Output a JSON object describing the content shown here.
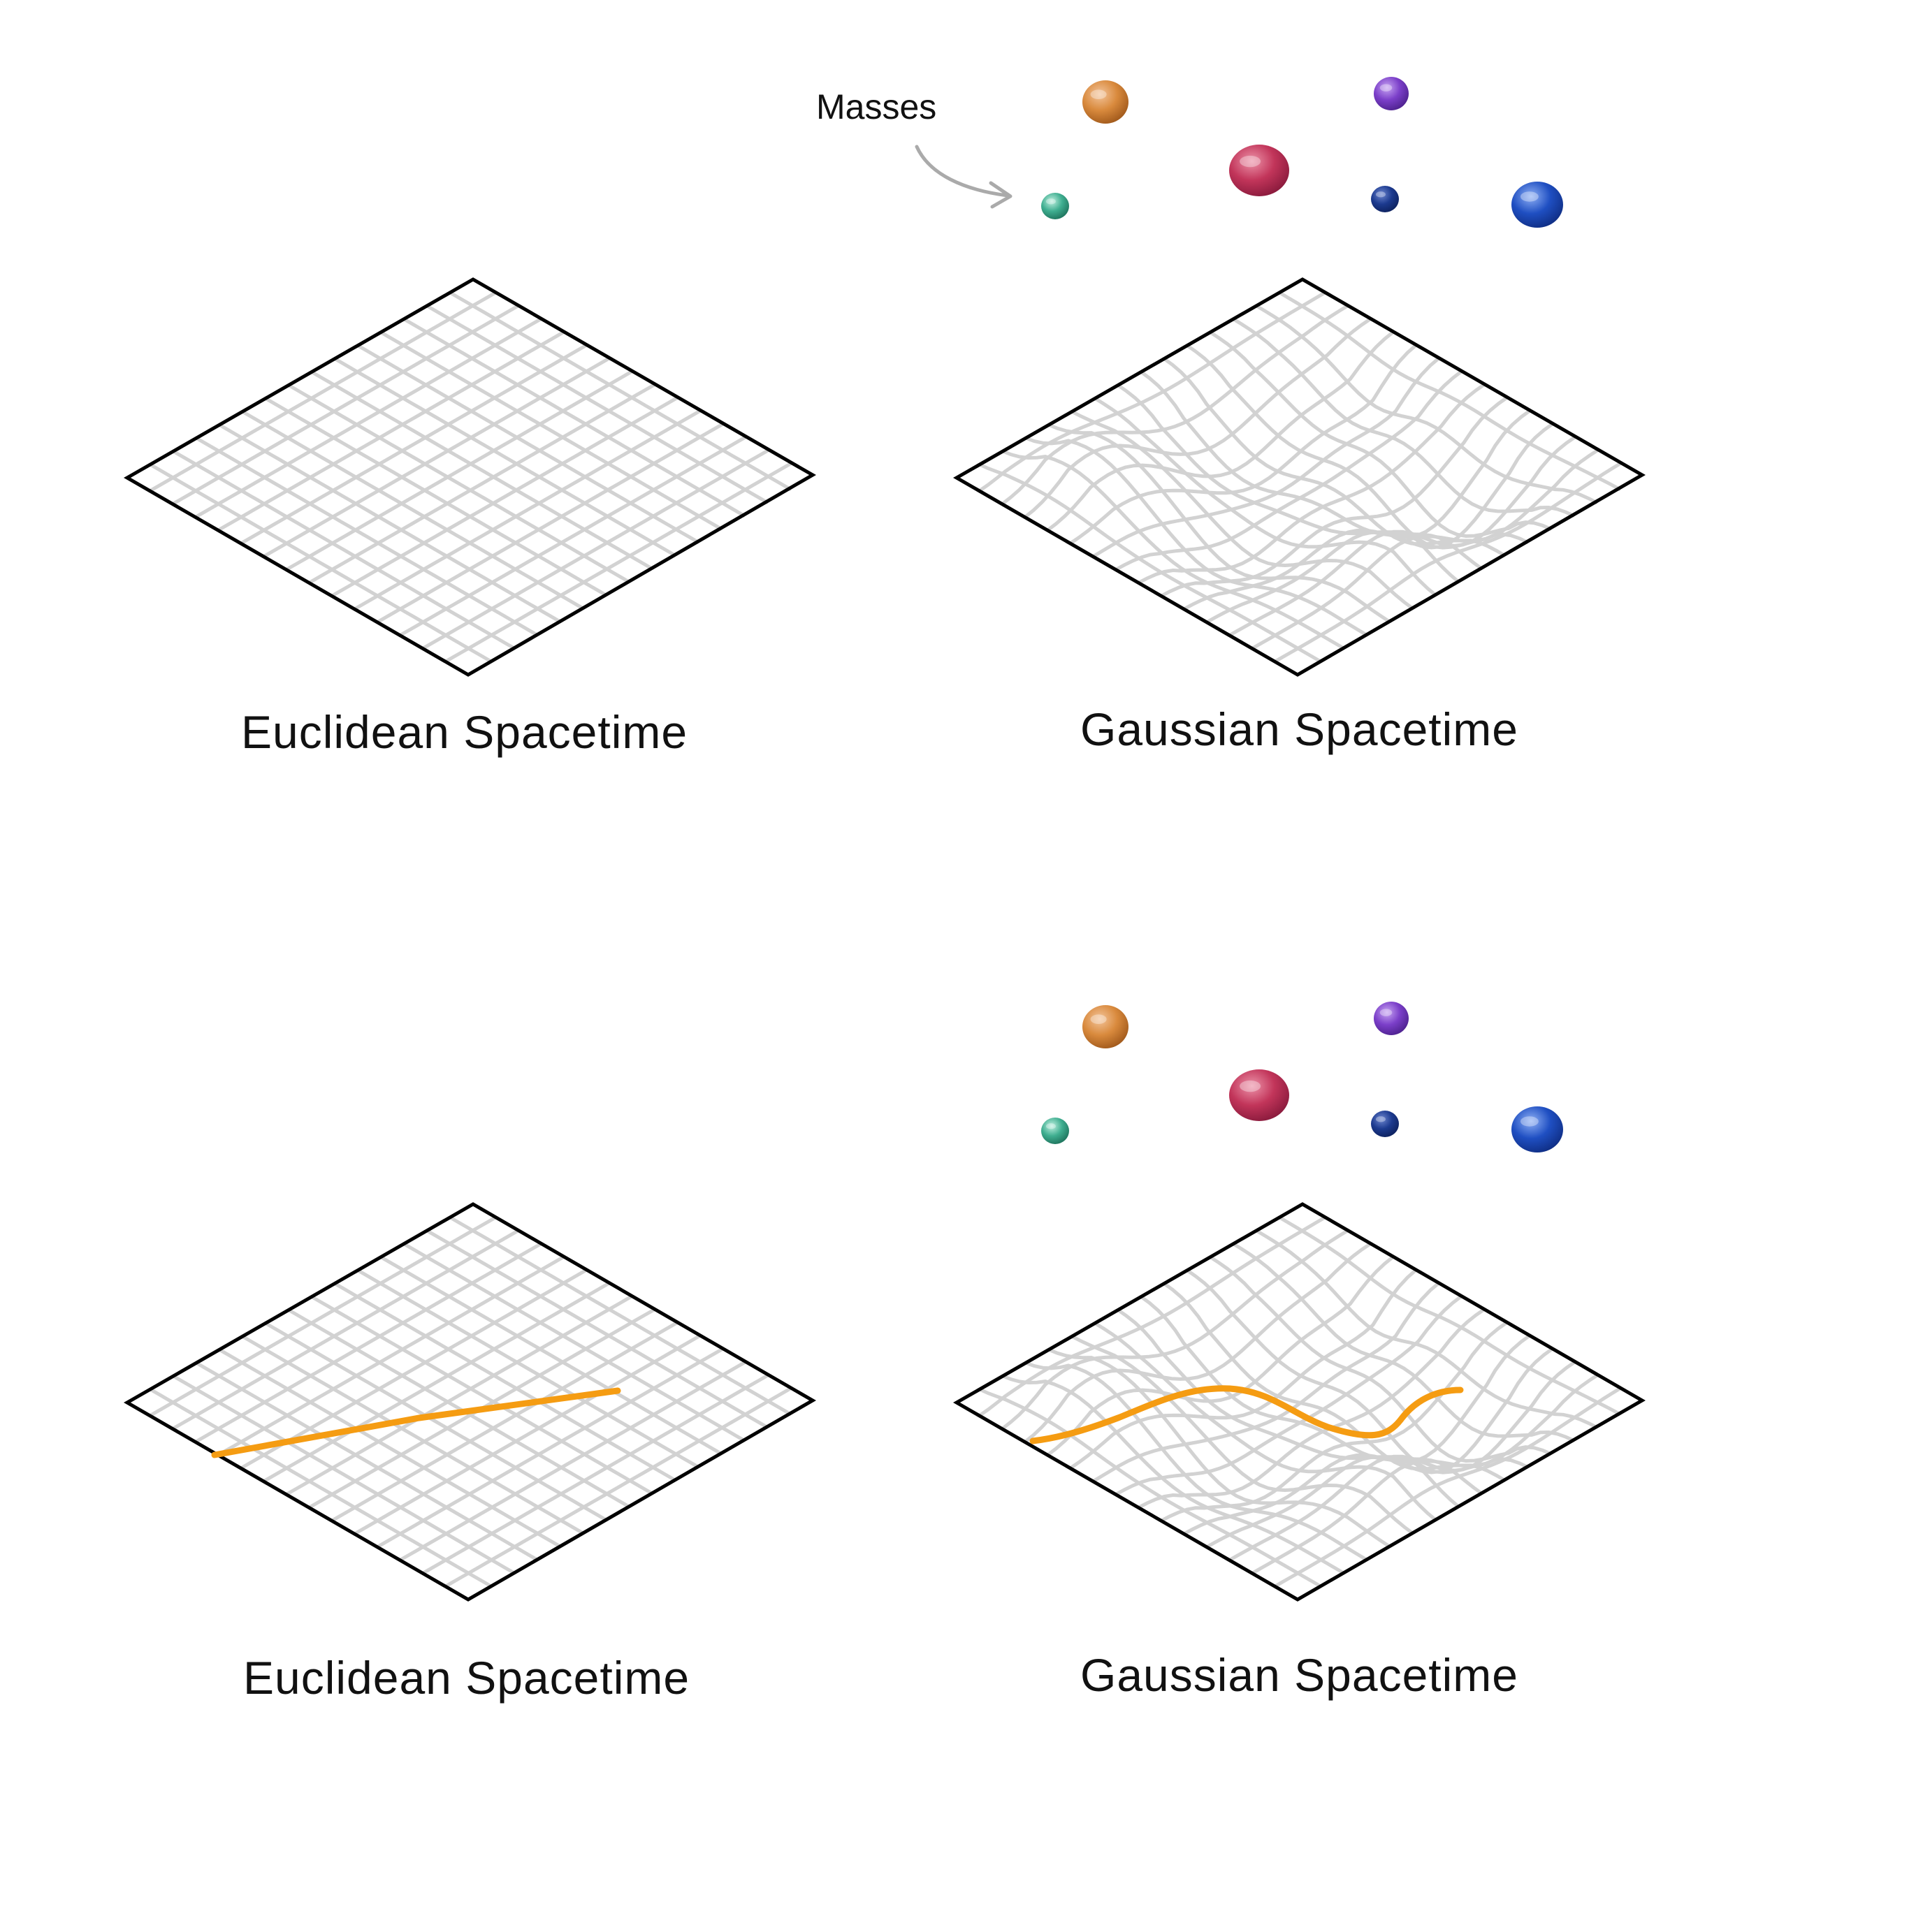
{
  "annotation": {
    "masses_label": "Masses"
  },
  "panels": [
    {
      "id": "top-left",
      "caption": "Euclidean Spacetime",
      "type": "flat",
      "path": false,
      "masses": false
    },
    {
      "id": "top-right",
      "caption": "Gaussian Spacetime",
      "type": "warped",
      "path": false,
      "masses": true
    },
    {
      "id": "bottom-left",
      "caption": "Euclidean Spacetime",
      "type": "flat",
      "path": true,
      "masses": false
    },
    {
      "id": "bottom-right",
      "caption": "Gaussian Spacetime",
      "type": "warped",
      "path": true,
      "masses": true
    }
  ],
  "masses": [
    {
      "name": "orange",
      "color": "#d98a3d"
    },
    {
      "name": "purple",
      "color": "#7b3fc9"
    },
    {
      "name": "crimson",
      "color": "#c2355a"
    },
    {
      "name": "teal",
      "color": "#3fae90"
    },
    {
      "name": "navy",
      "color": "#1c3a8f"
    },
    {
      "name": "blue",
      "color": "#1f4fc2"
    }
  ],
  "colors": {
    "grid": "#d2d2d2",
    "outline": "#000000",
    "path": "#f59c12",
    "arrow": "#aaaaaa"
  }
}
